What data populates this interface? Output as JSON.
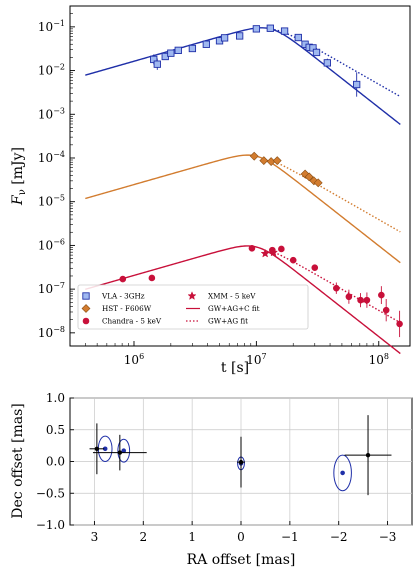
{
  "chart_data": [
    {
      "type": "scatter",
      "title": "",
      "xlabel": "t [s]",
      "ylabel": "F_ν [mJy]",
      "xscale": "log",
      "yscale": "log",
      "xlim": [
        300000,
        180000000
      ],
      "ylim": [
        5e-09,
        0.3
      ],
      "x_ticks": [
        {
          "value": 1000000,
          "base": "10",
          "exp": "6"
        },
        {
          "value": 10000000,
          "base": "10",
          "exp": "7"
        },
        {
          "value": 100000000,
          "base": "10",
          "exp": "8"
        }
      ],
      "y_ticks": [
        {
          "value": 1e-08,
          "base": "10",
          "exp": "−8"
        },
        {
          "value": 1e-07,
          "base": "10",
          "exp": "−7"
        },
        {
          "value": 1e-06,
          "base": "10",
          "exp": "−6"
        },
        {
          "value": 1e-05,
          "base": "10",
          "exp": "−5"
        },
        {
          "value": 0.0001,
          "base": "10",
          "exp": "−4"
        },
        {
          "value": 0.001,
          "base": "10",
          "exp": "−3"
        },
        {
          "value": 0.01,
          "base": "10",
          "exp": "−2"
        },
        {
          "value": 0.1,
          "base": "10",
          "exp": "−1"
        }
      ],
      "grid": false,
      "legend_position": "lower-left",
      "colors": {
        "vla": "#1f2fa8",
        "vla_face": "#9fb8f0",
        "hst": "#d27c2f",
        "chandra": "#c8103a"
      },
      "legend": [
        {
          "label": "VLA - 3GHz",
          "marker": "square",
          "color": "#1f2fa8",
          "face": "#9fb8f0"
        },
        {
          "label": "HST - F606W",
          "marker": "diamond",
          "color": "#d27c2f",
          "face": "#d27c2f"
        },
        {
          "label": "Chandra - 5 keV",
          "marker": "circle",
          "color": "#c8103a",
          "face": "#c8103a"
        },
        {
          "label": "XMM - 5 keV",
          "marker": "star",
          "color": "#c8103a",
          "face": "#c8103a"
        },
        {
          "label": "GW+AG+C fit",
          "marker": "solid-line",
          "color": "#c8103a",
          "face": "none"
        },
        {
          "label": "GW+AG fit",
          "marker": "dotted-line",
          "color": "#c8103a",
          "face": "none"
        }
      ],
      "series": [
        {
          "name": "VLA - 3GHz",
          "marker": "square",
          "color": "#1f2fa8",
          "face": "#9fb8f0",
          "x": [
            1450000,
            1550000,
            1800000,
            2000000,
            2300000,
            3000000,
            3900000,
            5000000,
            5500000,
            7300000,
            10000000,
            13000000,
            17000000,
            22000000,
            25000000,
            27000000,
            29000000,
            31000000,
            38000000,
            66000000
          ],
          "y": [
            0.018,
            0.014,
            0.021,
            0.025,
            0.029,
            0.032,
            0.04,
            0.048,
            0.056,
            0.062,
            0.09,
            0.093,
            0.08,
            0.057,
            0.04,
            0.034,
            0.033,
            0.026,
            0.015,
            0.0048
          ],
          "yerr_factor": [
            1.3,
            1.35,
            1.12,
            1.12,
            1.12,
            1.1,
            1.1,
            1.1,
            1.1,
            1.1,
            1.08,
            1.08,
            1.1,
            1.1,
            1.12,
            1.12,
            1.15,
            1.18,
            1.25,
            1.9
          ]
        },
        {
          "name": "HST - F606W",
          "marker": "diamond",
          "color": "#d27c2f",
          "face": "#d27c2f",
          "x": [
            9600000,
            11500000,
            13200000,
            14800000,
            25000000,
            27000000,
            29500000,
            32000000
          ],
          "y": 0,
          "yvals": [
            0.00011,
            8.7e-05,
            8.3e-05,
            8.7e-05,
            4.3e-05,
            3.7e-05,
            3e-05,
            2.7e-05
          ],
          "yerr_factor": [
            1.1,
            1.1,
            1.1,
            1.1,
            1.12,
            1.12,
            1.12,
            1.12
          ]
        },
        {
          "name": "Chandra - 5 keV",
          "marker": "circle",
          "color": "#c8103a",
          "face": "#c8103a",
          "x": [
            810000,
            1400000,
            9200000,
            13500000,
            16000000,
            20000000,
            30000000,
            45000000,
            57000000,
            71000000,
            80000000,
            105000000,
            115000000,
            148000000
          ],
          "yvals": [
            1.7e-07,
            1.8e-07,
            8.6e-07,
            7.8e-07,
            8.3e-07,
            4.6e-07,
            3.1e-07,
            1.05e-07,
            6.7e-08,
            5.6e-08,
            5.6e-08,
            7.3e-08,
            3.3e-08,
            1.6e-08
          ],
          "yerr_factor": [
            1.15,
            1.15,
            1.1,
            1.1,
            1.1,
            1.12,
            1.15,
            1.35,
            1.45,
            1.45,
            1.5,
            1.6,
            1.8,
            2.0
          ]
        },
        {
          "name": "XMM - 5 keV",
          "marker": "star",
          "color": "#c8103a",
          "face": "#c8103a",
          "x": [
            11800000,
            13800000
          ],
          "yvals": [
            6.5e-07,
            6.9e-07
          ],
          "yerr_factor": [
            1.12,
            1.12
          ]
        }
      ],
      "models": [
        {
          "name": "VLA GW+AG+C fit",
          "style": "solid",
          "color": "#1f2fa8",
          "peak_x": 13000000,
          "peak_y": 0.09,
          "rise": 0.8,
          "decay": -2.2,
          "smooth": 2.0,
          "xmin": 400000,
          "xmax": 150000000
        },
        {
          "name": "VLA GW+AG fit",
          "style": "dotted",
          "color": "#1f2fa8",
          "peak_x": 13000000,
          "peak_y": 0.09,
          "rise": 0.8,
          "decay": -1.6,
          "smooth": 2.0,
          "xmin": 14000000,
          "xmax": 150000000
        },
        {
          "name": "HST GW+AG+C fit",
          "style": "solid",
          "color": "#d27c2f",
          "peak_x": 10000000,
          "peak_y": 0.00011,
          "rise": 0.8,
          "decay": -2.2,
          "smooth": 2.0,
          "xmin": 400000,
          "xmax": 150000000
        },
        {
          "name": "HST GW+AG fit",
          "style": "dotted",
          "color": "#d27c2f",
          "peak_x": 10000000,
          "peak_y": 0.00011,
          "rise": 0.8,
          "decay": -1.6,
          "smooth": 2.0,
          "xmin": 14000000,
          "xmax": 150000000
        },
        {
          "name": "X-ray GW+AG+C fit",
          "style": "solid",
          "color": "#c8103a",
          "peak_x": 10000000,
          "peak_y": 9.2e-07,
          "rise": 0.8,
          "decay": -2.2,
          "smooth": 2.0,
          "xmin": 400000,
          "xmax": 150000000
        },
        {
          "name": "X-ray GW+AG fit",
          "style": "dotted",
          "color": "#c8103a",
          "peak_x": 10000000,
          "peak_y": 9.2e-07,
          "rise": 0.8,
          "decay": -1.6,
          "smooth": 2.0,
          "xmin": 14000000,
          "xmax": 150000000
        }
      ]
    },
    {
      "type": "scatter",
      "title": "",
      "xlabel": "RA offset [mas]",
      "ylabel": "Dec offset [mas]",
      "xlim": [
        3.5,
        -3.5
      ],
      "ylim": [
        -1.0,
        1.0
      ],
      "x_ticks": [
        "3",
        "2",
        "1",
        "0",
        "−1",
        "−2",
        "−3"
      ],
      "x_tick_values": [
        3,
        2,
        1,
        0,
        -1,
        -2,
        -3
      ],
      "y_ticks": [
        "1.0",
        "0.5",
        "0.0",
        "−0.5",
        "−1.0"
      ],
      "y_tick_values": [
        1.0,
        0.5,
        0.0,
        -0.5,
        -1.0
      ],
      "grid": true,
      "points": [
        {
          "x": 2.95,
          "y": 0.2,
          "xerr": 0.15,
          "yerr": 0.4,
          "color": "#000000"
        },
        {
          "x": 2.48,
          "y": 0.14,
          "xerr": 0.55,
          "yerr": 0.28,
          "color": "#000000"
        },
        {
          "x": 0.0,
          "y": -0.01,
          "xerr": 0.08,
          "yerr": 0.4,
          "color": "#000000"
        },
        {
          "x": -2.6,
          "y": 0.1,
          "xerr": 0.48,
          "yerr": 0.63,
          "color": "#000000"
        }
      ],
      "centroids": [
        {
          "x": 2.78,
          "y": 0.2,
          "rx": 0.14,
          "ry": 0.2,
          "color": "#1f2fa8"
        },
        {
          "x": 2.4,
          "y": 0.17,
          "rx": 0.12,
          "ry": 0.18,
          "color": "#1f2fa8"
        },
        {
          "x": 0.0,
          "y": -0.03,
          "rx": 0.07,
          "ry": 0.1,
          "color": "#1f2fa8"
        },
        {
          "x": -2.08,
          "y": -0.18,
          "rx": 0.18,
          "ry": 0.28,
          "color": "#1f2fa8"
        }
      ]
    }
  ]
}
